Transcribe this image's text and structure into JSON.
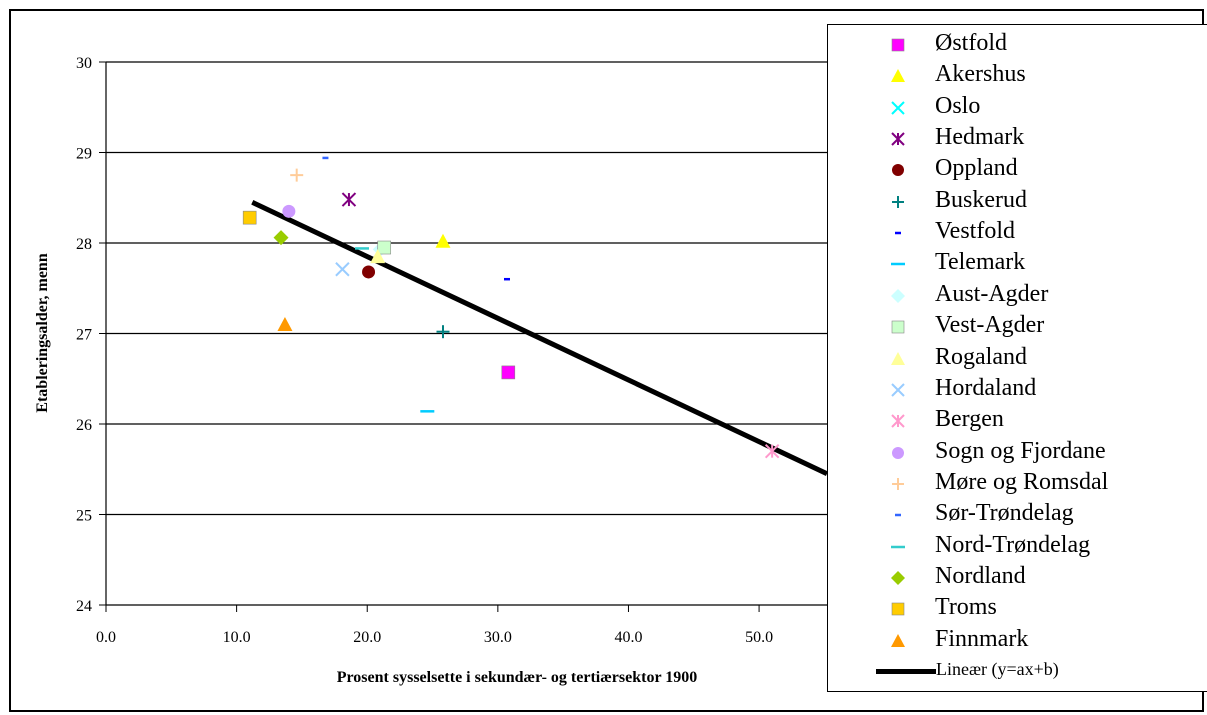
{
  "chart_data": {
    "type": "scatter",
    "xlabel": "Prosent sysselsette i sekundær- og tertiærsektor 1900",
    "ylabel": "Etableringsalder, menn",
    "xlim": [
      0,
      55.2
    ],
    "ylim": [
      24,
      30
    ],
    "x_ticks": [
      "0.0",
      "10.0",
      "20.0",
      "30.0",
      "40.0",
      "50.0"
    ],
    "y_ticks": [
      "24",
      "25",
      "26",
      "27",
      "28",
      "29",
      "30"
    ],
    "grid": "horizontal",
    "legend_position": "right",
    "series": [
      {
        "name": "Østfold",
        "marker": "square",
        "color": "#FF00FF",
        "points": [
          [
            30.8,
            26.57
          ]
        ]
      },
      {
        "name": "Akershus",
        "marker": "triangle",
        "color": "#FFFF00",
        "points": [
          [
            25.8,
            28.02
          ]
        ]
      },
      {
        "name": "Oslo",
        "marker": "x",
        "color": "#00FFFF",
        "points": []
      },
      {
        "name": "Hedmark",
        "marker": "asterisk",
        "color": "#800080",
        "points": [
          [
            18.6,
            28.48
          ]
        ]
      },
      {
        "name": "Oppland",
        "marker": "circle",
        "color": "#800000",
        "points": [
          [
            20.1,
            27.68
          ]
        ]
      },
      {
        "name": "Buskerud",
        "marker": "plus",
        "color": "#008080",
        "points": [
          [
            25.8,
            27.02
          ]
        ]
      },
      {
        "name": "Vestfold",
        "marker": "dash",
        "color": "#0000FF",
        "points": [
          [
            30.7,
            27.6
          ]
        ]
      },
      {
        "name": "Telemark",
        "marker": "long-dash",
        "color": "#00CCFF",
        "points": [
          [
            24.6,
            26.14
          ]
        ]
      },
      {
        "name": "Aust-Agder",
        "marker": "diamond",
        "color": "#CCFFFF",
        "points": [
          [
            21.0,
            27.93
          ]
        ]
      },
      {
        "name": "Vest-Agder",
        "marker": "square",
        "color": "#CCFFCC",
        "points": [
          [
            21.3,
            27.95
          ]
        ]
      },
      {
        "name": "Rogaland",
        "marker": "triangle",
        "color": "#FFFF99",
        "points": [
          [
            20.8,
            27.85
          ]
        ]
      },
      {
        "name": "Hordaland",
        "marker": "x",
        "color": "#99CCFF",
        "points": [
          [
            18.1,
            27.71
          ]
        ]
      },
      {
        "name": "Bergen",
        "marker": "asterisk",
        "color": "#FF99CC",
        "points": [
          [
            51.0,
            25.7
          ]
        ]
      },
      {
        "name": "Sogn og Fjordane",
        "marker": "circle",
        "color": "#CC99FF",
        "points": [
          [
            14.0,
            28.35
          ]
        ]
      },
      {
        "name": "Møre og Romsdal",
        "marker": "plus",
        "color": "#FFCC99",
        "points": [
          [
            14.6,
            28.75
          ]
        ]
      },
      {
        "name": "Sør-Trøndelag",
        "marker": "dash",
        "color": "#3366FF",
        "points": [
          [
            16.8,
            28.94
          ]
        ]
      },
      {
        "name": "Nord-Trøndelag",
        "marker": "long-dash",
        "color": "#33CCCC",
        "points": [
          [
            19.6,
            27.94
          ]
        ]
      },
      {
        "name": "Nordland",
        "marker": "diamond",
        "color": "#99CC00",
        "points": [
          [
            13.4,
            28.06
          ]
        ]
      },
      {
        "name": "Troms",
        "marker": "square",
        "color": "#FFCC00",
        "points": [
          [
            11.0,
            28.28
          ]
        ]
      },
      {
        "name": "Finnmark",
        "marker": "triangle",
        "color": "#FF9900",
        "points": [
          [
            13.7,
            27.1
          ]
        ]
      }
    ],
    "trendline": {
      "name": "Lineær (y=ax+b)",
      "color": "#000000",
      "x_start": 11.2,
      "y_start": 28.45,
      "x_end": 55.2,
      "y_end": 25.45
    }
  }
}
